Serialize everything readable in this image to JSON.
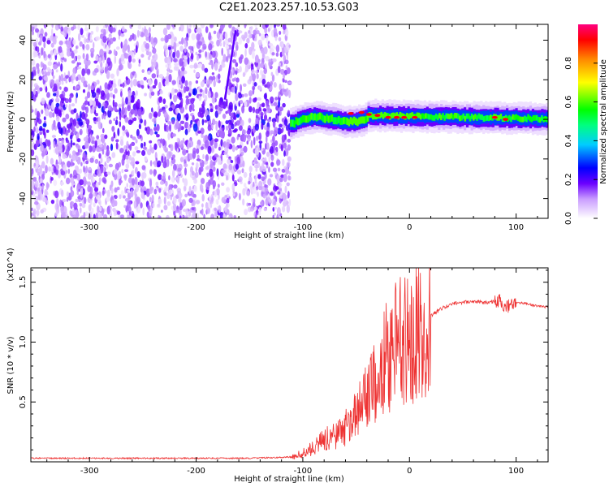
{
  "title": "C2E1.2023.257.10.53.G03",
  "chart_data": [
    {
      "type": "heatmap",
      "xlabel": "Height of straight line (km)",
      "ylabel": "Frequency (Hz)",
      "xlim": [
        -355,
        130
      ],
      "ylim": [
        -50,
        48
      ],
      "x_ticks": [
        "-300",
        "-200",
        "-100",
        "0",
        "100"
      ],
      "y_ticks": [
        "-40",
        "-20",
        "0",
        "20",
        "40"
      ],
      "x_tick_values": [
        -300,
        -200,
        -100,
        0,
        100
      ],
      "y_tick_values": [
        -40,
        -20,
        0,
        20,
        40
      ],
      "colorbar": {
        "label": "Normalized spectral amplitude",
        "range": [
          0,
          1
        ],
        "ticks": [
          "0.0",
          "0.2",
          "0.4",
          "0.6",
          "0.8"
        ],
        "tick_values": [
          0.0,
          0.2,
          0.4,
          0.6,
          0.8
        ]
      },
      "regions": [
        {
          "x_range": [
            -355,
            -112
          ],
          "freq_range": [
            -50,
            48
          ],
          "amplitude_range": [
            0.05,
            0.2
          ]
        },
        {
          "x_range": [
            -112,
            130
          ],
          "freq_center_hz": 1,
          "freq_halfwidth_hz": 4,
          "amplitude_range": [
            0.5,
            0.95
          ]
        }
      ],
      "streak": {
        "x": [
          -173,
          -163
        ],
        "freq": [
          10,
          45
        ]
      }
    },
    {
      "type": "line",
      "xlabel": "Height of straight line (km)",
      "ylabel": "SNR (10 * v/v)",
      "y_multiplier": "(x10^4)",
      "xlim": [
        -355,
        130
      ],
      "ylim": [
        0,
        1.62
      ],
      "x_ticks": [
        "-300",
        "-200",
        "-100",
        "0",
        "100"
      ],
      "y_ticks": [
        "0.5",
        "1.0",
        "1.5"
      ],
      "x_tick_values": [
        -300,
        -200,
        -100,
        0,
        100
      ],
      "y_tick_values": [
        0.5,
        1.0,
        1.5
      ],
      "series": [
        {
          "color": "#ee3333",
          "x": [
            -355,
            -300,
            -250,
            -200,
            -150,
            -110,
            -100,
            -90,
            -80,
            -70,
            -60,
            -50,
            -40,
            -30,
            -20,
            -10,
            0,
            10,
            20,
            30,
            40,
            50,
            60,
            70,
            80,
            85,
            90,
            95,
            100,
            110,
            120,
            130
          ],
          "y": [
            0.03,
            0.03,
            0.03,
            0.03,
            0.03,
            0.04,
            0.07,
            0.12,
            0.18,
            0.22,
            0.28,
            0.38,
            0.55,
            0.75,
            0.9,
            1.0,
            1.02,
            1.1,
            1.22,
            1.28,
            1.32,
            1.33,
            1.34,
            1.33,
            1.34,
            1.35,
            1.3,
            1.3,
            1.33,
            1.32,
            1.3,
            1.29
          ]
        }
      ]
    }
  ]
}
